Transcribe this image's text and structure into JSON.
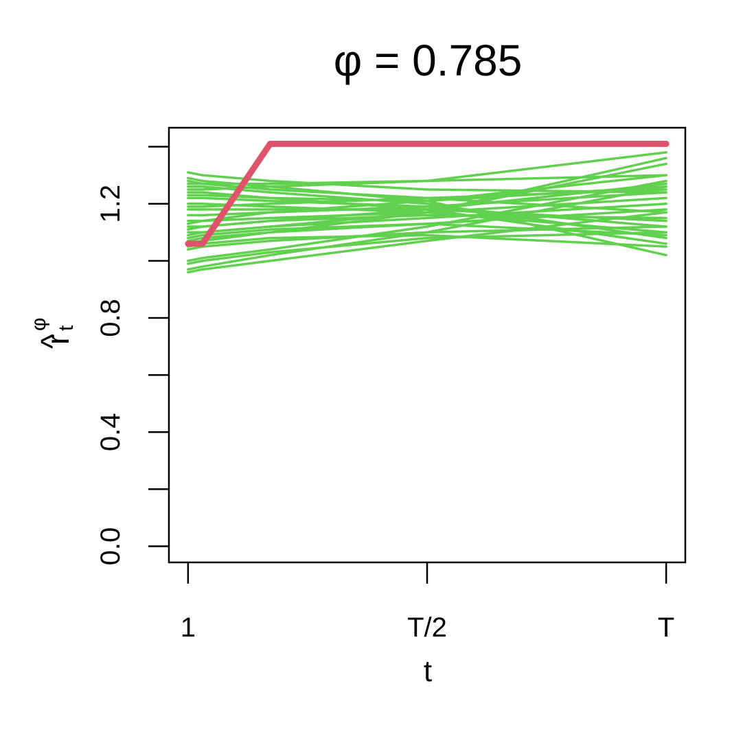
{
  "chart_data": {
    "type": "line",
    "title": "φ = 0.785",
    "xlabel": "t",
    "ylabel": {
      "hat": "^",
      "base": "r",
      "sup": "φ",
      "sub": "t"
    },
    "x": [
      1,
      4,
      18,
      50.5,
      100
    ],
    "xlim": [
      -2.96,
      103.96
    ],
    "xticks": [
      1,
      {
        "value": 50.5,
        "label": "T/2"
      },
      {
        "value": 100,
        "label": "T"
      }
    ],
    "ylim": [
      -0.0564,
      1.4664
    ],
    "yticks": [
      {
        "value": 0,
        "label": "0.0"
      },
      {
        "value": 0.4,
        "label": "0.4"
      },
      {
        "value": 0.8,
        "label": "0.8"
      },
      {
        "value": 1.2,
        "label": "1.2"
      }
    ],
    "yminor_ticks": [
      0.2,
      0.6,
      1.0,
      1.4
    ],
    "series": [
      {
        "color": "#61D04F",
        "values": [
          0.96,
          0.97,
          1.0,
          1.07,
          1.17
        ]
      },
      {
        "color": "#61D04F",
        "values": [
          0.97,
          0.98,
          1.02,
          1.1,
          1.26
        ]
      },
      {
        "color": "#61D04F",
        "values": [
          0.99,
          1.0,
          1.03,
          1.08,
          1.1
        ]
      },
      {
        "color": "#61D04F",
        "values": [
          1.0,
          1.01,
          1.04,
          1.12,
          1.28
        ]
      },
      {
        "color": "#61D04F",
        "values": [
          1.04,
          1.05,
          1.07,
          1.1,
          1.12
        ]
      },
      {
        "color": "#61D04F",
        "values": [
          1.05,
          1.06,
          1.08,
          1.09,
          1.05
        ]
      },
      {
        "color": "#61D04F",
        "values": [
          1.07,
          1.08,
          1.1,
          1.13,
          1.18
        ]
      },
      {
        "color": "#61D04F",
        "values": [
          1.09,
          1.1,
          1.12,
          1.15,
          1.2
        ]
      },
      {
        "color": "#61D04F",
        "values": [
          1.1,
          1.1,
          1.12,
          1.17,
          1.34
        ]
      },
      {
        "color": "#61D04F",
        "values": [
          1.12,
          1.12,
          1.14,
          1.16,
          1.15
        ]
      },
      {
        "color": "#61D04F",
        "values": [
          1.14,
          1.14,
          1.15,
          1.17,
          1.22
        ]
      },
      {
        "color": "#61D04F",
        "values": [
          1.16,
          1.16,
          1.17,
          1.19,
          1.24
        ]
      },
      {
        "color": "#61D04F",
        "values": [
          1.18,
          1.18,
          1.18,
          1.18,
          1.14
        ]
      },
      {
        "color": "#61D04F",
        "values": [
          1.2,
          1.2,
          1.19,
          1.17,
          1.1
        ]
      },
      {
        "color": "#61D04F",
        "values": [
          1.22,
          1.22,
          1.21,
          1.19,
          1.12
        ]
      },
      {
        "color": "#61D04F",
        "values": [
          1.24,
          1.24,
          1.22,
          1.18,
          1.06
        ]
      },
      {
        "color": "#61D04F",
        "values": [
          1.26,
          1.26,
          1.24,
          1.2,
          1.08
        ]
      },
      {
        "color": "#61D04F",
        "values": [
          1.28,
          1.27,
          1.25,
          1.22,
          1.17
        ]
      },
      {
        "color": "#61D04F",
        "values": [
          1.29,
          1.28,
          1.26,
          1.21,
          1.02
        ]
      },
      {
        "color": "#61D04F",
        "values": [
          1.31,
          1.3,
          1.28,
          1.25,
          1.24
        ]
      },
      {
        "color": "#61D04F",
        "values": [
          1.27,
          1.27,
          1.27,
          1.28,
          1.3
        ]
      },
      {
        "color": "#61D04F",
        "values": [
          1.25,
          1.25,
          1.26,
          1.28,
          1.38
        ]
      },
      {
        "color": "#61D04F",
        "values": [
          1.06,
          1.07,
          1.1,
          1.17,
          1.36
        ]
      },
      {
        "color": "#61D04F",
        "values": [
          1.13,
          1.14,
          1.17,
          1.21,
          1.3
        ]
      },
      {
        "color": "#61D04F",
        "values": [
          1.08,
          1.09,
          1.11,
          1.13,
          1.09
        ]
      },
      {
        "color": "#61D04F",
        "values": [
          1.23,
          1.23,
          1.22,
          1.21,
          1.26
        ]
      },
      {
        "color": "#61D04F",
        "values": [
          1.11,
          1.12,
          1.14,
          1.18,
          1.27
        ]
      },
      {
        "color": "#61D04F",
        "values": [
          1.19,
          1.19,
          1.2,
          1.22,
          1.25
        ]
      },
      {
        "color": "#DF536B",
        "values": [
          1.06,
          1.06,
          1.41,
          1.41,
          1.41
        ]
      }
    ]
  }
}
